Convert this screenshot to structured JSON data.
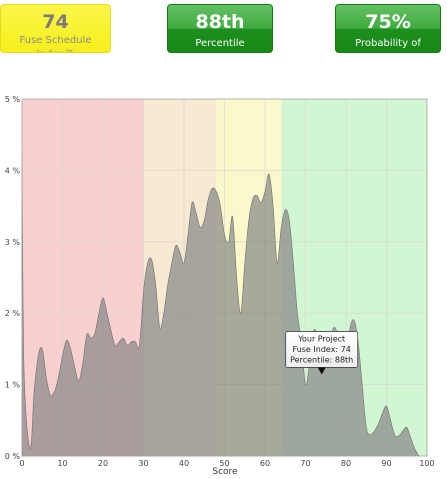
{
  "summary": {
    "index": {
      "value": "74",
      "label": "Fuse Schedule Index™",
      "color": "#f7f01f"
    },
    "percentile": {
      "value": "88th",
      "label": "Percentile",
      "color": "#2e9e2e"
    },
    "probability": {
      "value": "75%",
      "label": "Probability of Success",
      "color": "#2e9e2e"
    }
  },
  "chart_data": {
    "type": "area",
    "xlabel": "Score",
    "ylabel": "",
    "xlim": [
      0,
      100
    ],
    "ylim": [
      0,
      5
    ],
    "x_ticks": [
      "0",
      "10",
      "20",
      "30",
      "40",
      "50",
      "60",
      "70",
      "80",
      "90",
      "100"
    ],
    "y_ticks": [
      "0 %",
      "1 %",
      "2 %",
      "3 %",
      "4 %",
      "5 %"
    ],
    "grid": true,
    "bands": [
      {
        "from": 0,
        "to": 30,
        "color": "#f9d0d0"
      },
      {
        "from": 30,
        "to": 48,
        "color": "#f8e9d2"
      },
      {
        "from": 48,
        "to": 64,
        "color": "#fbf9cc"
      },
      {
        "from": 64,
        "to": 100,
        "color": "#d2f6d2"
      }
    ],
    "series": [
      {
        "fill": "#888888",
        "x": [
          0,
          0.5,
          2,
          3,
          4,
          5,
          6,
          7,
          8,
          9,
          10,
          11,
          12,
          13,
          14,
          15,
          16,
          17,
          18,
          19,
          20,
          21,
          22,
          23,
          24,
          25,
          26,
          27,
          28,
          29,
          30,
          31,
          32,
          33,
          34,
          35,
          36,
          37,
          38,
          39,
          40,
          41,
          42,
          43,
          44,
          45,
          46,
          47,
          48,
          49,
          50,
          51,
          52,
          53,
          54,
          55,
          56,
          57,
          58,
          59,
          60,
          61,
          62,
          63,
          64,
          65,
          66,
          67,
          68,
          69,
          70,
          71,
          72,
          73,
          74,
          75,
          76,
          77,
          78,
          79,
          80,
          81,
          82,
          83,
          84,
          85,
          86,
          87,
          88,
          89,
          90,
          91,
          92,
          93,
          94,
          95,
          96,
          97,
          98
        ],
        "y": [
          4.3,
          1.2,
          0.1,
          0.9,
          1.4,
          1.5,
          1.1,
          0.85,
          0.9,
          1.1,
          1.4,
          1.62,
          1.5,
          1.25,
          1.05,
          1.3,
          1.7,
          1.65,
          1.72,
          2.0,
          2.22,
          2.0,
          1.75,
          1.55,
          1.6,
          1.65,
          1.55,
          1.6,
          1.6,
          1.55,
          2.3,
          2.7,
          2.75,
          2.4,
          1.8,
          2.0,
          2.4,
          2.7,
          2.95,
          2.85,
          2.7,
          3.1,
          3.55,
          3.4,
          3.2,
          3.3,
          3.6,
          3.75,
          3.7,
          3.5,
          3.1,
          3.0,
          3.35,
          2.5,
          2.0,
          2.7,
          3.3,
          3.6,
          3.65,
          3.55,
          3.7,
          3.95,
          3.5,
          2.7,
          3.2,
          3.45,
          3.3,
          2.7,
          2.0,
          1.6,
          1.0,
          1.3,
          1.75,
          1.7,
          1.5,
          1.25,
          1.6,
          1.8,
          1.7,
          1.5,
          1.4,
          1.8,
          1.9,
          1.6,
          1.0,
          0.4,
          0.3,
          0.35,
          0.45,
          0.6,
          0.7,
          0.5,
          0.3,
          0.28,
          0.35,
          0.4,
          0.25,
          0.1,
          0
        ]
      }
    ],
    "annotation": {
      "x": 74,
      "y": 1.1,
      "lines": [
        "Your Project",
        "Fuse Index: 74",
        "Percentile: 88th"
      ]
    }
  }
}
